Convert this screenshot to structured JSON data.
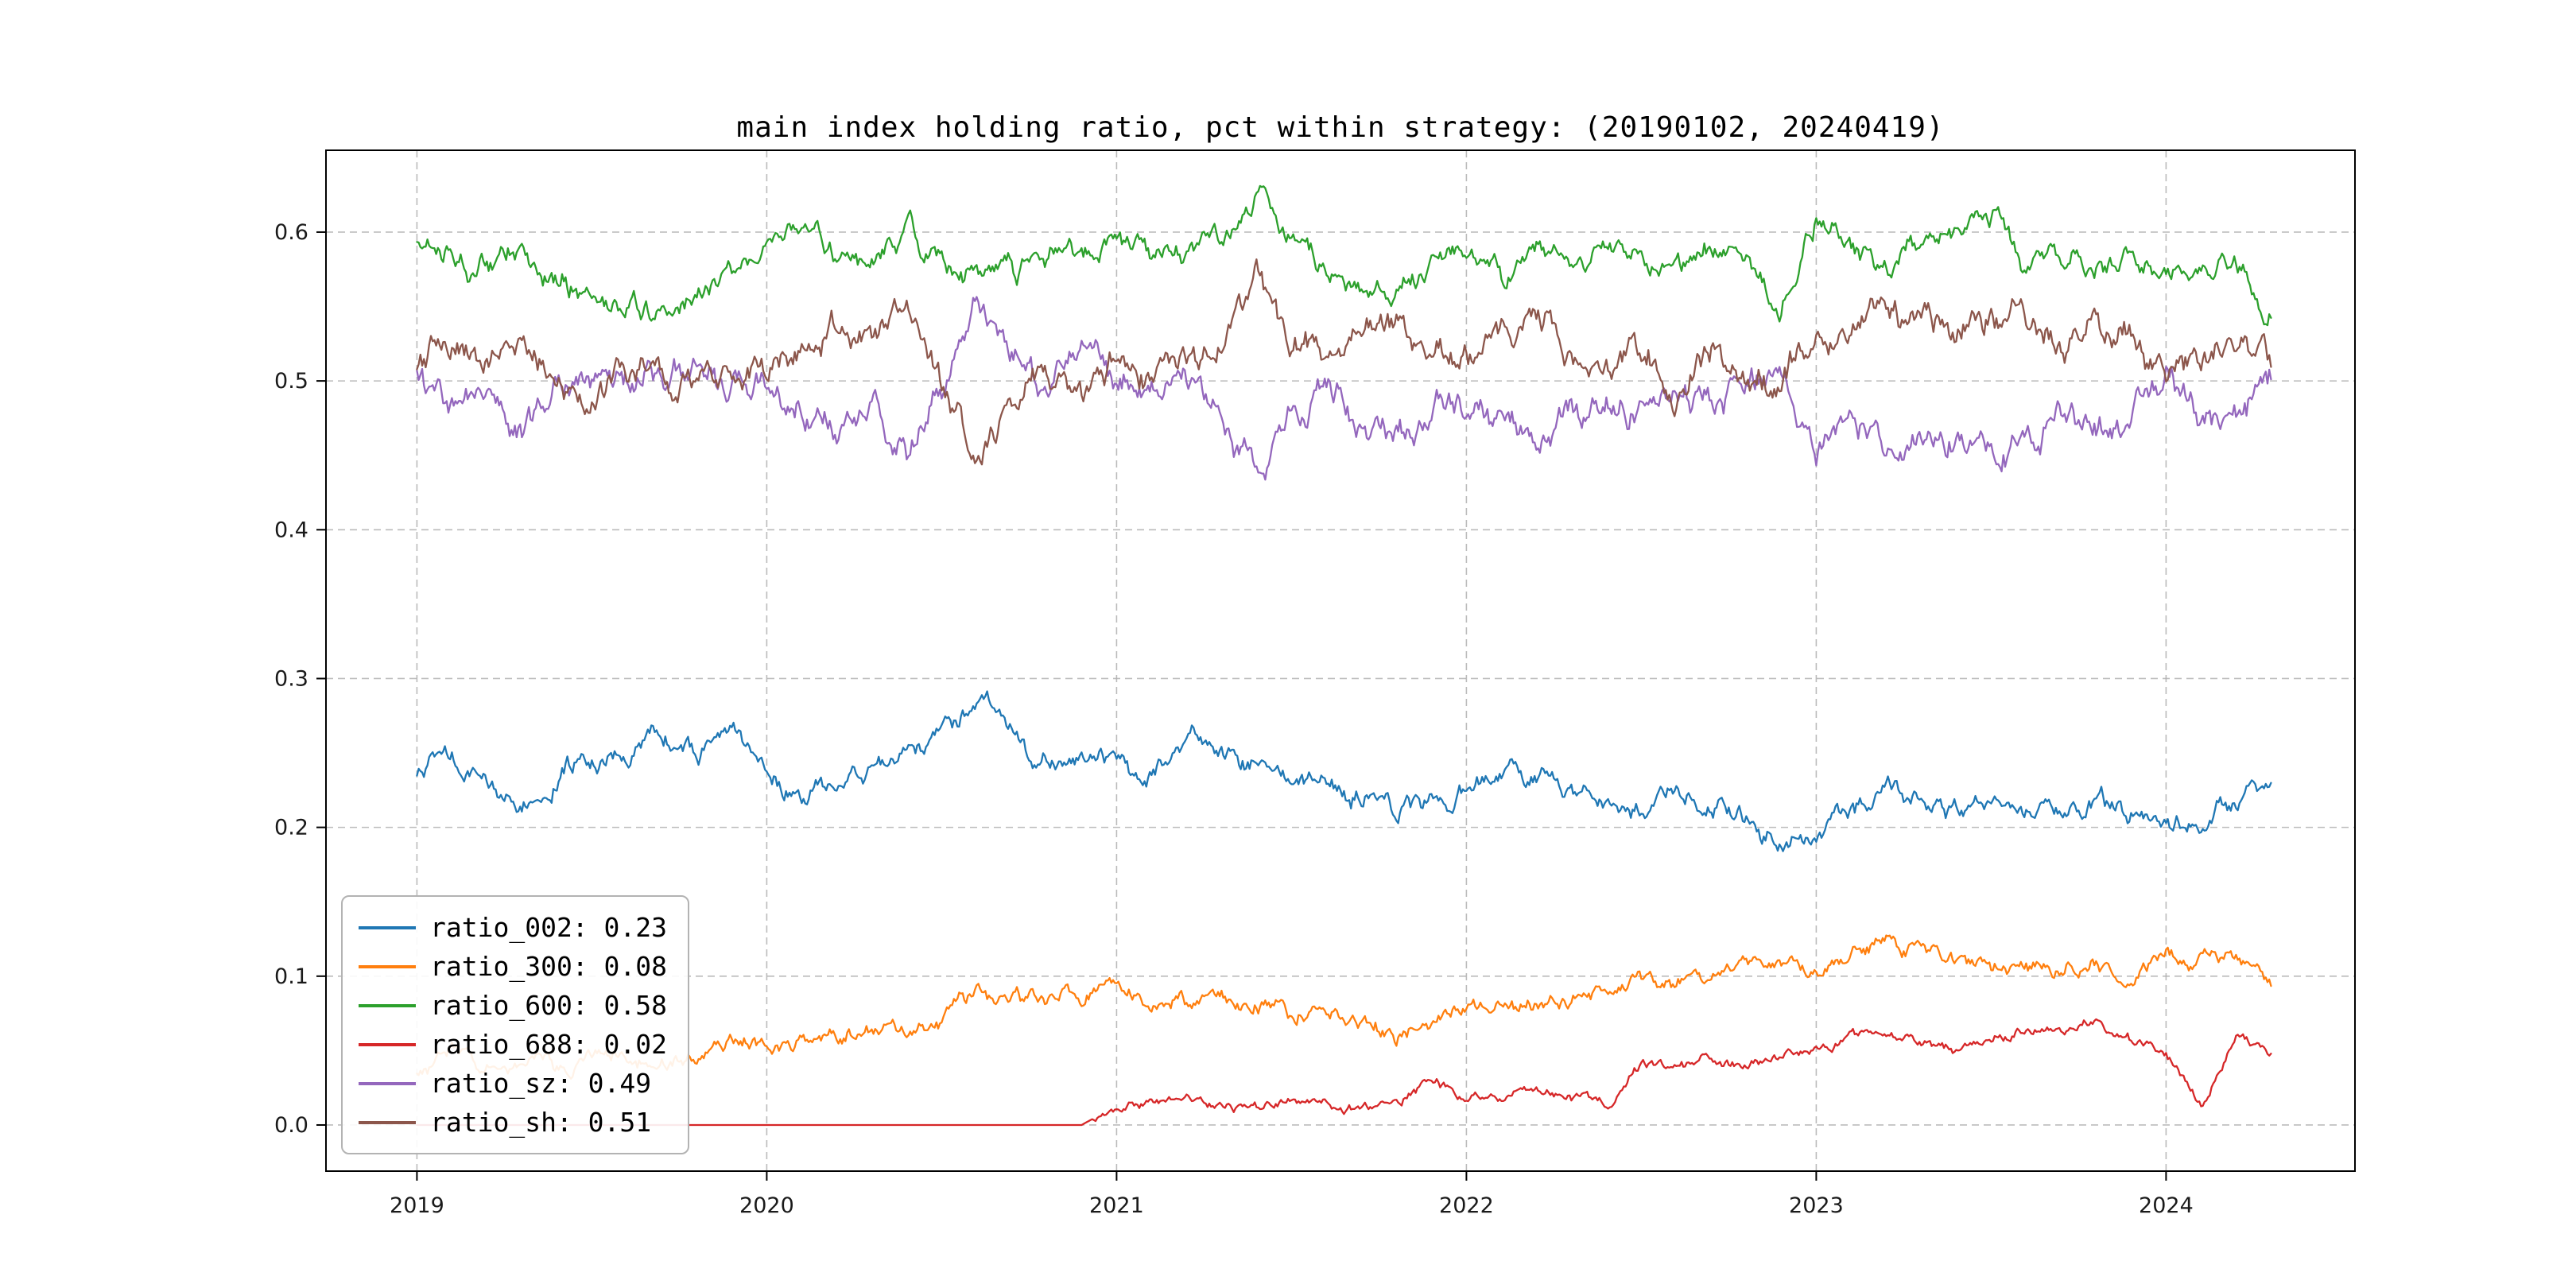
{
  "chart_data": {
    "type": "line",
    "title": "main index holding ratio, pct within strategy: (20190102, 20240419)",
    "xlabel": "",
    "ylabel": "",
    "x_ticks": [
      2019,
      2020,
      2021,
      2022,
      2023,
      2024
    ],
    "y_ticks": [
      0.0,
      0.1,
      0.2,
      0.3,
      0.4,
      0.5,
      0.6
    ],
    "x_range": [
      2018.74,
      2024.54
    ],
    "y_range": [
      -0.031,
      0.655
    ],
    "grid": "dashed",
    "grid_color": "#b0b0b0",
    "axis_color": "#000000",
    "legend_position": "lower-left",
    "x": [
      2019.0,
      2019.1,
      2019.2,
      2019.3,
      2019.4,
      2019.5,
      2019.6,
      2019.7,
      2019.8,
      2019.9,
      2020.0,
      2020.1,
      2020.2,
      2020.3,
      2020.4,
      2020.5,
      2020.6,
      2020.7,
      2020.8,
      2020.9,
      2021.0,
      2021.1,
      2021.2,
      2021.3,
      2021.4,
      2021.5,
      2021.6,
      2021.7,
      2021.8,
      2021.9,
      2022.0,
      2022.1,
      2022.2,
      2022.3,
      2022.4,
      2022.5,
      2022.6,
      2022.7,
      2022.8,
      2022.9,
      2023.0,
      2023.1,
      2023.2,
      2023.3,
      2023.4,
      2023.5,
      2023.6,
      2023.7,
      2023.8,
      2023.9,
      2024.0,
      2024.1,
      2024.2,
      2024.3
    ],
    "series": [
      {
        "name": "ratio_002",
        "label": "ratio_002: 0.23",
        "color": "#1f77b4",
        "volatility": 0.005,
        "values": [
          0.235,
          0.25,
          0.23,
          0.215,
          0.235,
          0.245,
          0.25,
          0.26,
          0.245,
          0.265,
          0.24,
          0.22,
          0.235,
          0.24,
          0.25,
          0.26,
          0.285,
          0.27,
          0.245,
          0.25,
          0.24,
          0.235,
          0.26,
          0.25,
          0.245,
          0.23,
          0.235,
          0.22,
          0.21,
          0.22,
          0.225,
          0.23,
          0.235,
          0.225,
          0.22,
          0.215,
          0.225,
          0.215,
          0.21,
          0.195,
          0.19,
          0.21,
          0.22,
          0.215,
          0.21,
          0.22,
          0.215,
          0.21,
          0.215,
          0.21,
          0.205,
          0.2,
          0.215,
          0.225
        ]
      },
      {
        "name": "ratio_300",
        "label": "ratio_300: 0.08",
        "color": "#ff7f0e",
        "volatility": 0.004,
        "values": [
          0.03,
          0.045,
          0.04,
          0.035,
          0.04,
          0.045,
          0.05,
          0.045,
          0.05,
          0.055,
          0.05,
          0.055,
          0.06,
          0.065,
          0.06,
          0.07,
          0.09,
          0.08,
          0.085,
          0.09,
          0.095,
          0.085,
          0.08,
          0.085,
          0.08,
          0.075,
          0.08,
          0.07,
          0.06,
          0.07,
          0.075,
          0.08,
          0.085,
          0.08,
          0.09,
          0.1,
          0.095,
          0.1,
          0.105,
          0.11,
          0.105,
          0.115,
          0.125,
          0.115,
          0.11,
          0.105,
          0.11,
          0.105,
          0.11,
          0.105,
          0.11,
          0.115,
          0.115,
          0.1
        ]
      },
      {
        "name": "ratio_600",
        "label": "ratio_600: 0.58",
        "color": "#2ca02c",
        "volatility": 0.006,
        "values": [
          0.595,
          0.585,
          0.575,
          0.585,
          0.57,
          0.555,
          0.545,
          0.55,
          0.555,
          0.575,
          0.585,
          0.605,
          0.585,
          0.575,
          0.6,
          0.58,
          0.565,
          0.575,
          0.58,
          0.59,
          0.595,
          0.58,
          0.59,
          0.585,
          0.62,
          0.595,
          0.575,
          0.56,
          0.55,
          0.575,
          0.585,
          0.57,
          0.585,
          0.575,
          0.59,
          0.585,
          0.58,
          0.59,
          0.585,
          0.555,
          0.605,
          0.585,
          0.575,
          0.59,
          0.6,
          0.61,
          0.585,
          0.575,
          0.585,
          0.58,
          0.575,
          0.56,
          0.575,
          0.55
        ]
      },
      {
        "name": "ratio_688",
        "label": "ratio_688: 0.02",
        "color": "#d62728",
        "volatility": 0.0025,
        "values": [
          0,
          0,
          0,
          0,
          0,
          0,
          0,
          0,
          0,
          0,
          0,
          0,
          0,
          0,
          0,
          0,
          0,
          0,
          0,
          0,
          0.013,
          0.015,
          0.018,
          0.015,
          0.012,
          0.015,
          0.013,
          0.01,
          0.012,
          0.03,
          0.018,
          0.022,
          0.025,
          0.02,
          0.015,
          0.04,
          0.038,
          0.042,
          0.04,
          0.045,
          0.05,
          0.058,
          0.062,
          0.055,
          0.05,
          0.06,
          0.065,
          0.06,
          0.068,
          0.055,
          0.05,
          0.015,
          0.06,
          0.045
        ]
      },
      {
        "name": "ratio_sz",
        "label": "ratio_sz: 0.49",
        "color": "#9467bd",
        "volatility": 0.0075,
        "values": [
          0.5,
          0.475,
          0.49,
          0.465,
          0.5,
          0.505,
          0.495,
          0.5,
          0.505,
          0.5,
          0.5,
          0.48,
          0.465,
          0.48,
          0.455,
          0.5,
          0.555,
          0.52,
          0.495,
          0.51,
          0.49,
          0.5,
          0.485,
          0.47,
          0.44,
          0.48,
          0.49,
          0.475,
          0.465,
          0.48,
          0.49,
          0.475,
          0.465,
          0.48,
          0.49,
          0.48,
          0.5,
          0.485,
          0.5,
          0.5,
          0.46,
          0.47,
          0.455,
          0.46,
          0.47,
          0.455,
          0.46,
          0.475,
          0.46,
          0.47,
          0.5,
          0.48,
          0.475,
          0.5
        ]
      },
      {
        "name": "ratio_sh",
        "label": "ratio_sh: 0.51",
        "color": "#8c564b",
        "volatility": 0.0075,
        "values": [
          0.5,
          0.525,
          0.51,
          0.535,
          0.5,
          0.495,
          0.505,
          0.5,
          0.495,
          0.5,
          0.5,
          0.52,
          0.535,
          0.52,
          0.545,
          0.5,
          0.445,
          0.48,
          0.505,
          0.49,
          0.51,
          0.5,
          0.515,
          0.53,
          0.56,
          0.52,
          0.51,
          0.525,
          0.535,
          0.52,
          0.51,
          0.525,
          0.535,
          0.52,
          0.51,
          0.52,
          0.5,
          0.515,
          0.5,
          0.5,
          0.54,
          0.53,
          0.545,
          0.54,
          0.53,
          0.545,
          0.54,
          0.525,
          0.54,
          0.53,
          0.5,
          0.52,
          0.525,
          0.5
        ]
      }
    ]
  }
}
